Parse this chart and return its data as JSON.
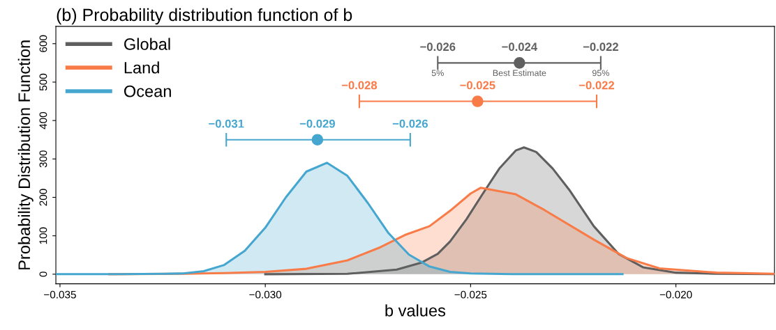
{
  "chart_data": {
    "type": "area",
    "title": "(b) Probability distribution function of b",
    "xlabel": "b values",
    "ylabel": "Probability Distribution Function",
    "xlim": [
      -0.0351,
      -0.0176
    ],
    "ylim": [
      -25,
      645
    ],
    "xticks": [
      {
        "value": -0.035,
        "label": "−0.035"
      },
      {
        "value": -0.03,
        "label": "−0.030"
      },
      {
        "value": -0.025,
        "label": "−0.025"
      },
      {
        "value": -0.02,
        "label": "−0.020"
      }
    ],
    "yticks": [
      0,
      100,
      200,
      300,
      400,
      500,
      600
    ],
    "legend": "top left",
    "grid": false,
    "series": [
      {
        "name": "Global",
        "color": "#5f5f5f",
        "x": [
          -0.03,
          -0.028,
          -0.0268,
          -0.0262,
          -0.0258,
          -0.0255,
          -0.0251,
          -0.0247,
          -0.0243,
          -0.0239,
          -0.0237,
          -0.0234,
          -0.023,
          -0.0226,
          -0.022,
          -0.0214,
          -0.0208,
          -0.02,
          -0.019,
          -0.0176
        ],
        "values": [
          0,
          1,
          12,
          30,
          53,
          85,
          143,
          210,
          275,
          322,
          330,
          318,
          275,
          220,
          125,
          53,
          18,
          4,
          1,
          0
        ]
      },
      {
        "name": "Land",
        "color": "#f87b48",
        "x": [
          -0.0338,
          -0.032,
          -0.031,
          -0.03,
          -0.029,
          -0.028,
          -0.0272,
          -0.0266,
          -0.026,
          -0.0255,
          -0.025,
          -0.02475,
          -0.0239,
          -0.0232,
          -0.022,
          -0.0212,
          -0.0204,
          -0.019,
          -0.0176
        ],
        "values": [
          0,
          1,
          3,
          6,
          14,
          36,
          70,
          102,
          125,
          165,
          210,
          225,
          208,
          167,
          90,
          42,
          15,
          4,
          1
        ]
      },
      {
        "name": "Ocean",
        "color": "#45a6cf",
        "x": [
          -0.0351,
          -0.0335,
          -0.0325,
          -0.032,
          -0.0315,
          -0.031,
          -0.0305,
          -0.03,
          -0.0295,
          -0.029,
          -0.0285,
          -0.028,
          -0.0275,
          -0.027,
          -0.0265,
          -0.026,
          -0.0255,
          -0.025,
          -0.024,
          -0.0213
        ],
        "values": [
          0,
          0,
          1,
          2,
          8,
          24,
          61,
          121,
          200,
          267,
          290,
          256,
          185,
          107,
          51,
          20,
          6,
          2,
          0,
          0
        ]
      },
      {
        "type": "scatter",
        "color": "#606060",
        "x": [
          -0.02381
        ],
        "values": [
          550
        ],
        "xerrors": [
          [
            -0.0258,
            -0.02183
          ]
        ]
      },
      {
        "type": "scatter",
        "color": "#f87b48",
        "x": [
          -0.02483
        ],
        "values": [
          450
        ],
        "xerrors": [
          [
            -0.02771,
            -0.02193
          ]
        ]
      },
      {
        "type": "scatter",
        "color": "#45a6cf",
        "x": [
          -0.02873
        ],
        "values": [
          350
        ],
        "xerrors": [
          [
            -0.03095,
            -0.02647
          ]
        ]
      }
    ],
    "annotations": [
      {
        "text": "−0.026",
        "x": -0.0258,
        "y": 550
      },
      {
        "text": "−0.024",
        "x": -0.02381,
        "y": 550
      },
      {
        "text": "−0.022",
        "x": -0.02183,
        "y": 550
      },
      {
        "text": "−0.028",
        "x": -0.02771,
        "y": 450
      },
      {
        "text": "−0.025",
        "x": -0.02483,
        "y": 450
      },
      {
        "text": "−0.022",
        "x": -0.02193,
        "y": 450
      },
      {
        "text": "−0.031",
        "x": -0.03095,
        "y": 350
      },
      {
        "text": "−0.029",
        "x": -0.02873,
        "y": 350
      },
      {
        "text": "−0.026",
        "x": -0.02647,
        "y": 350
      },
      {
        "text": "5%",
        "x": -0.0258,
        "y": 550
      },
      {
        "text": "Best Estimate",
        "x": -0.02381,
        "y": 550
      },
      {
        "text": "95%",
        "x": -0.02183,
        "y": 550
      }
    ]
  }
}
